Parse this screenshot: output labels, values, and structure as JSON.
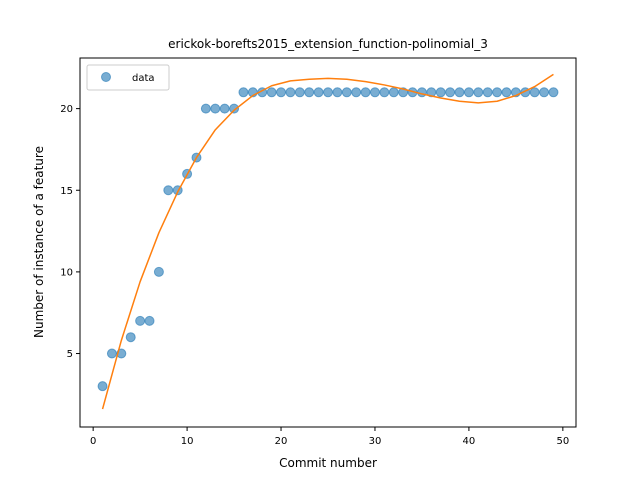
{
  "chart_data": {
    "type": "scatter",
    "title": "erickok-borefts2015_extension_function-polinomial_3",
    "xlabel": "Commit number",
    "ylabel": "Number of instance of a feature",
    "xlim": [
      -1.4,
      51.4
    ],
    "ylim": [
      0.5,
      23.1
    ],
    "xticks": [
      0,
      10,
      20,
      30,
      40,
      50
    ],
    "yticks": [
      5,
      10,
      15,
      20
    ],
    "grid": false,
    "legend": {
      "position": "top-left",
      "entries": [
        "data"
      ]
    },
    "series": [
      {
        "name": "data",
        "kind": "scatter",
        "color": "#1f77b4",
        "x": [
          1,
          2,
          3,
          4,
          5,
          6,
          7,
          8,
          9,
          10,
          11,
          12,
          13,
          14,
          15,
          16,
          17,
          18,
          19,
          20,
          21,
          22,
          23,
          24,
          25,
          26,
          27,
          28,
          29,
          30,
          31,
          32,
          33,
          34,
          35,
          36,
          37,
          38,
          39,
          40,
          41,
          42,
          43,
          44,
          45,
          46,
          47,
          48,
          49
        ],
        "y": [
          3,
          5,
          5,
          6,
          7,
          7,
          10,
          15,
          15,
          16,
          17,
          20,
          20,
          20,
          20,
          21,
          21,
          21,
          21,
          21,
          21,
          21,
          21,
          21,
          21,
          21,
          21,
          21,
          21,
          21,
          21,
          21,
          21,
          21,
          21,
          21,
          21,
          21,
          21,
          21,
          21,
          21,
          21,
          21,
          21,
          21,
          21,
          21,
          21
        ]
      },
      {
        "kind": "line",
        "color": "#ff7f0e",
        "x": [
          1,
          3,
          5,
          7,
          9,
          11,
          13,
          15,
          17,
          19,
          21,
          23,
          25,
          27,
          29,
          31,
          33,
          35,
          37,
          39,
          41,
          43,
          45,
          47,
          49
        ],
        "y": [
          1.6,
          5.8,
          9.4,
          12.4,
          14.9,
          17.0,
          18.7,
          19.9,
          20.8,
          21.4,
          21.7,
          21.8,
          21.85,
          21.8,
          21.65,
          21.45,
          21.2,
          20.9,
          20.65,
          20.45,
          20.35,
          20.45,
          20.8,
          21.35,
          22.1
        ]
      }
    ]
  }
}
